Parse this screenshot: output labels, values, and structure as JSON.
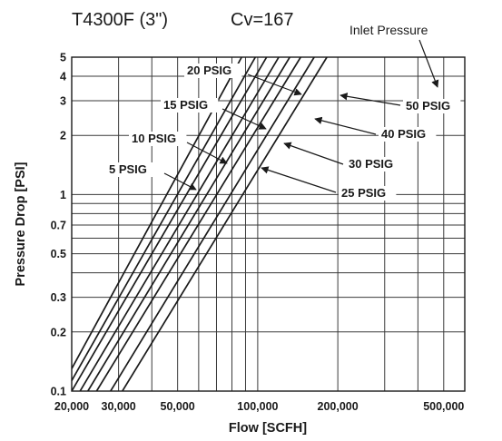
{
  "chart_data": {
    "type": "line",
    "title": "T4300F (3\")",
    "subtitle": "Cv=167",
    "legend_title": "Inlet Pressure",
    "xlabel": "Flow [SCFH]",
    "ylabel": "Pressure Drop [PSI]",
    "x_scale": "log",
    "y_scale": "log",
    "xlim": [
      20000,
      600000
    ],
    "ylim": [
      0.1,
      5
    ],
    "x_ticks": [
      20000,
      30000,
      50000,
      100000,
      200000,
      500000
    ],
    "x_tick_labels": [
      "20,000",
      "30,000",
      "50,000",
      "100,000",
      "200,000",
      "500,000"
    ],
    "y_ticks": [
      0.1,
      0.2,
      0.3,
      0.5,
      0.7,
      1,
      2,
      3,
      4,
      5
    ],
    "y_tick_labels": [
      "0.1",
      "0.2",
      "0.3",
      "0.5",
      "0.7",
      "1",
      "2",
      "3",
      "4",
      "5"
    ],
    "x_grid": [
      20000,
      30000,
      40000,
      50000,
      60000,
      70000,
      80000,
      90000,
      100000,
      200000,
      300000,
      400000,
      500000,
      600000
    ],
    "y_grid": [
      0.1,
      0.2,
      0.3,
      0.4,
      0.5,
      0.6,
      0.7,
      0.8,
      0.9,
      1,
      2,
      3,
      4,
      5
    ],
    "grid": true,
    "series": [
      {
        "name": "5 PSIG",
        "x": [
          20000,
          87000
        ],
        "y": [
          0.13,
          5
        ]
      },
      {
        "name": "10 PSIG",
        "x": [
          20000,
          98000
        ],
        "y": [
          0.113,
          5
        ]
      },
      {
        "name": "15 PSIG",
        "x": [
          20000,
          108000
        ],
        "y": [
          0.1,
          5
        ]
      },
      {
        "name": "20 PSIG",
        "x": [
          21500,
          120000
        ],
        "y": [
          0.1,
          5
        ]
      },
      {
        "name": "25 PSIG",
        "x": [
          23000,
          132000
        ],
        "y": [
          0.1,
          5
        ]
      },
      {
        "name": "30 PSIG",
        "x": [
          24800,
          145000
        ],
        "y": [
          0.1,
          5
        ]
      },
      {
        "name": "40 PSIG",
        "x": [
          28000,
          163000
        ],
        "y": [
          0.1,
          5
        ]
      },
      {
        "name": "50 PSIG",
        "x": [
          31000,
          182000
        ],
        "y": [
          0.1,
          5
        ]
      }
    ],
    "labels": [
      "5 PSIG",
      "10 PSIG",
      "15 PSIG",
      "20 PSIG",
      "25 PSIG",
      "30 PSIG",
      "40 PSIG",
      "50 PSIG"
    ]
  },
  "colors": {
    "line": "#1a1a1a",
    "grid": "#3a3a3a",
    "background": "#ffffff"
  }
}
